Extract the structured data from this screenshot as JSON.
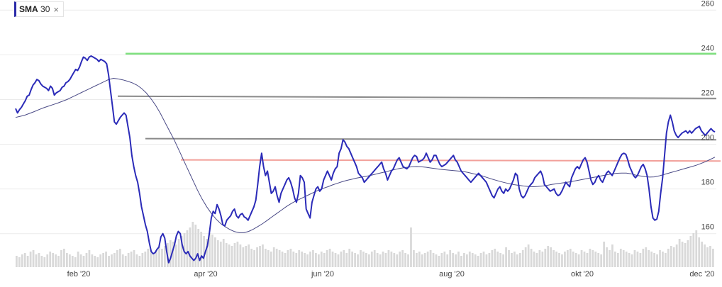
{
  "legend": {
    "label": "SMA",
    "param": "30",
    "close_icon": "close-icon"
  },
  "colors": {
    "price": "#2b2bb8",
    "sma": "#4a4a86",
    "volume": "#d9d9d9",
    "grid": "#ebebeb",
    "resistance_green": "#7ee07e",
    "level_gray": "#8a8a8a",
    "support_red": "#f2a09a"
  },
  "chart_data": {
    "type": "line",
    "x_tick_labels": [
      "feb '20",
      "apr '20",
      "jun '20",
      "aug '20",
      "okt '20",
      "dec '20"
    ],
    "y_tick_labels": [
      "160",
      "180",
      "200",
      "220",
      "240",
      "260"
    ],
    "ylim": [
      145,
      262
    ],
    "grid": true,
    "series": [
      {
        "name": "SMA 30",
        "role": "sma",
        "values": [
          212,
          212.5,
          213,
          213.8,
          214.6,
          215.5,
          216.3,
          217,
          217.7,
          218.4,
          219.2,
          220,
          221,
          222,
          223,
          224,
          225,
          226,
          227,
          228,
          229,
          229.5,
          229.2,
          228.8,
          228.2,
          227.5,
          226.5,
          225,
          223,
          220.5,
          217.5,
          214,
          210,
          206,
          202,
          197.5,
          193,
          188.5,
          184,
          179.5,
          175.5,
          172,
          169,
          166.5,
          164.5,
          163,
          161.8,
          160.9,
          160.4,
          160.4,
          161,
          162,
          163.2,
          164.5,
          166,
          167.5,
          169,
          170.5,
          172,
          173.3,
          174.5,
          175.5,
          176.5,
          177.5,
          178.5,
          179.5,
          180.3,
          181,
          181.8,
          182.5,
          183.2,
          183.8,
          184.3,
          184.8,
          185.2,
          185.6,
          186,
          186.5,
          187,
          187.5,
          188,
          188.5,
          189,
          189.4,
          189.7,
          189.9,
          190,
          189.9,
          189.7,
          189.4,
          189.1,
          188.8,
          188.6,
          188.4,
          188.2,
          188,
          187.8,
          187.4,
          186.9,
          186.4,
          185.9,
          185.2,
          184.5,
          183.9,
          183.3,
          182.8,
          182.3,
          181.9,
          181.6,
          181.3,
          181.1,
          181,
          181.1,
          181.3,
          181.6,
          182,
          182.3,
          182.6,
          182.9,
          183.2,
          183.6,
          184,
          184.4,
          184.8,
          185.2,
          185.6,
          186,
          186.4,
          186.8,
          187,
          187.1,
          187.1,
          186.8,
          186.2,
          185.8,
          185.5,
          185.3,
          185.4,
          185.8,
          186.4,
          187,
          187.6,
          188.2,
          188.8,
          189.4,
          190,
          190.6,
          191.4,
          192.2,
          193.2,
          194.2
        ]
      },
      {
        "name": "",
        "role": "price",
        "values": [
          216,
          214,
          215.5,
          216.5,
          218,
          219.5,
          221.5,
          222,
          224.5,
          226.5,
          227.5,
          229,
          228.5,
          227,
          226,
          225.5,
          225,
          224,
          226,
          225,
          222,
          223,
          223.5,
          224,
          225.5,
          226,
          227.5,
          228,
          229,
          230.5,
          232,
          233.5,
          233,
          234.5,
          237,
          239,
          238.5,
          237.5,
          239,
          239.5,
          239,
          238.5,
          238,
          237,
          238,
          237.5,
          237,
          236,
          231,
          224,
          217,
          210,
          209,
          210.5,
          212,
          213,
          214,
          213,
          208,
          203,
          195,
          190,
          186,
          183,
          178,
          172,
          168,
          164,
          161,
          156,
          152,
          151,
          151.5,
          153,
          154,
          158.5,
          160,
          158,
          152,
          147,
          149,
          152,
          155,
          159,
          161,
          160,
          155,
          152,
          151,
          152,
          150,
          149,
          148,
          149,
          151,
          148,
          150,
          149,
          152,
          154.5,
          160,
          167,
          170,
          169,
          173,
          171,
          168,
          164,
          163.5,
          166,
          167,
          168,
          170,
          171,
          168,
          167,
          168.5,
          169,
          167.5,
          167,
          166,
          168,
          170,
          172,
          175,
          182,
          190,
          196,
          190,
          186,
          188,
          183,
          178,
          179,
          181,
          177,
          174,
          178,
          180,
          182,
          184,
          185,
          183,
          180,
          176,
          174,
          178,
          186,
          185,
          183,
          171,
          169,
          167,
          174,
          177,
          180,
          181,
          179,
          180,
          184,
          186,
          188,
          186,
          184,
          187,
          189,
          190,
          196,
          198,
          202,
          201,
          199,
          198,
          196,
          194,
          192,
          190,
          187,
          186,
          185,
          183,
          184,
          185,
          186,
          187,
          188,
          189,
          190,
          191,
          192,
          189,
          187,
          184,
          186,
          188,
          189,
          191,
          193,
          194,
          192,
          190,
          189.5,
          189,
          190,
          192,
          194,
          195,
          194.5,
          192,
          192.5,
          193,
          194,
          196,
          194,
          192,
          193,
          195,
          195,
          193,
          191,
          190,
          190.5,
          191,
          192,
          193,
          194,
          195,
          193,
          192,
          190,
          188,
          187,
          186,
          185,
          184,
          183,
          184,
          185,
          186,
          187,
          186,
          185,
          184,
          183,
          181,
          179,
          177,
          176,
          178,
          180,
          181,
          179,
          178,
          180,
          179,
          180,
          182,
          184,
          187,
          186,
          180,
          177,
          176,
          177,
          179,
          181,
          182,
          183,
          185,
          186,
          187,
          188,
          186,
          182,
          181,
          180,
          179,
          179.5,
          180,
          178,
          177,
          177.5,
          179,
          181,
          183,
          182,
          181,
          185,
          187,
          189,
          190,
          189,
          191,
          193,
          194,
          192,
          188,
          184,
          182,
          183,
          185,
          186,
          184,
          183,
          185,
          187,
          188,
          187,
          186,
          188,
          190,
          192,
          194,
          195.5,
          196,
          195.5,
          193,
          190,
          188,
          186,
          185,
          186,
          188,
          190,
          191,
          189,
          186,
          180,
          172,
          167,
          166,
          166.5,
          170,
          178,
          185,
          195,
          205,
          210,
          213,
          210,
          206,
          204,
          203,
          204,
          205,
          205.5,
          206,
          205,
          206,
          205,
          206,
          207,
          207.5,
          208,
          206,
          205,
          204,
          205,
          206,
          207,
          206,
          205.5
        ]
      }
    ],
    "volume": [
      8,
      7,
      9,
      10,
      8,
      11,
      12,
      9,
      10,
      8,
      7,
      9,
      11,
      10,
      9,
      8,
      12,
      13,
      10,
      9,
      8,
      7,
      11,
      9,
      8,
      10,
      12,
      9,
      8,
      7,
      9,
      10,
      11,
      8,
      9,
      10,
      12,
      13,
      9,
      8,
      10,
      11,
      12,
      9,
      8,
      10,
      11,
      13,
      12,
      10,
      12,
      14,
      13,
      15,
      17,
      19,
      18,
      16,
      20,
      22,
      24,
      26,
      28,
      32,
      30,
      27,
      25,
      22,
      20,
      24,
      23,
      21,
      19,
      18,
      20,
      17,
      16,
      15,
      17,
      18,
      16,
      14,
      15,
      16,
      13,
      12,
      14,
      15,
      16,
      13,
      12,
      11,
      14,
      13,
      12,
      11,
      10,
      12,
      13,
      11,
      10,
      12,
      11,
      10,
      9,
      11,
      12,
      10,
      9,
      11,
      10,
      12,
      13,
      11,
      10,
      9,
      11,
      12,
      10,
      13,
      11,
      10,
      9,
      12,
      11,
      10,
      9,
      11,
      12,
      10,
      9,
      11,
      10,
      12,
      11,
      10,
      9,
      11,
      12,
      10,
      9,
      28,
      12,
      10,
      11,
      9,
      10,
      11,
      12,
      10,
      9,
      8,
      10,
      11,
      9,
      12,
      10,
      9,
      11,
      8,
      10,
      9,
      11,
      10,
      9,
      8,
      10,
      11,
      9,
      10,
      12,
      13,
      11,
      10,
      9,
      14,
      12,
      10,
      11,
      9,
      10,
      12,
      14,
      16,
      13,
      11,
      10,
      12,
      11,
      13,
      15,
      14,
      12,
      11,
      10,
      9,
      11,
      12,
      13,
      11,
      10,
      9,
      12,
      11,
      10,
      13,
      12,
      11,
      10,
      9,
      18,
      14,
      12,
      16,
      11,
      10,
      13,
      12,
      11,
      10,
      9,
      12,
      11,
      10,
      13,
      14,
      12,
      11,
      10,
      9,
      12,
      11,
      10,
      13,
      15,
      14,
      16,
      20,
      18,
      17,
      19,
      22,
      24,
      26,
      21,
      18,
      16,
      14,
      15,
      13
    ]
  }
}
